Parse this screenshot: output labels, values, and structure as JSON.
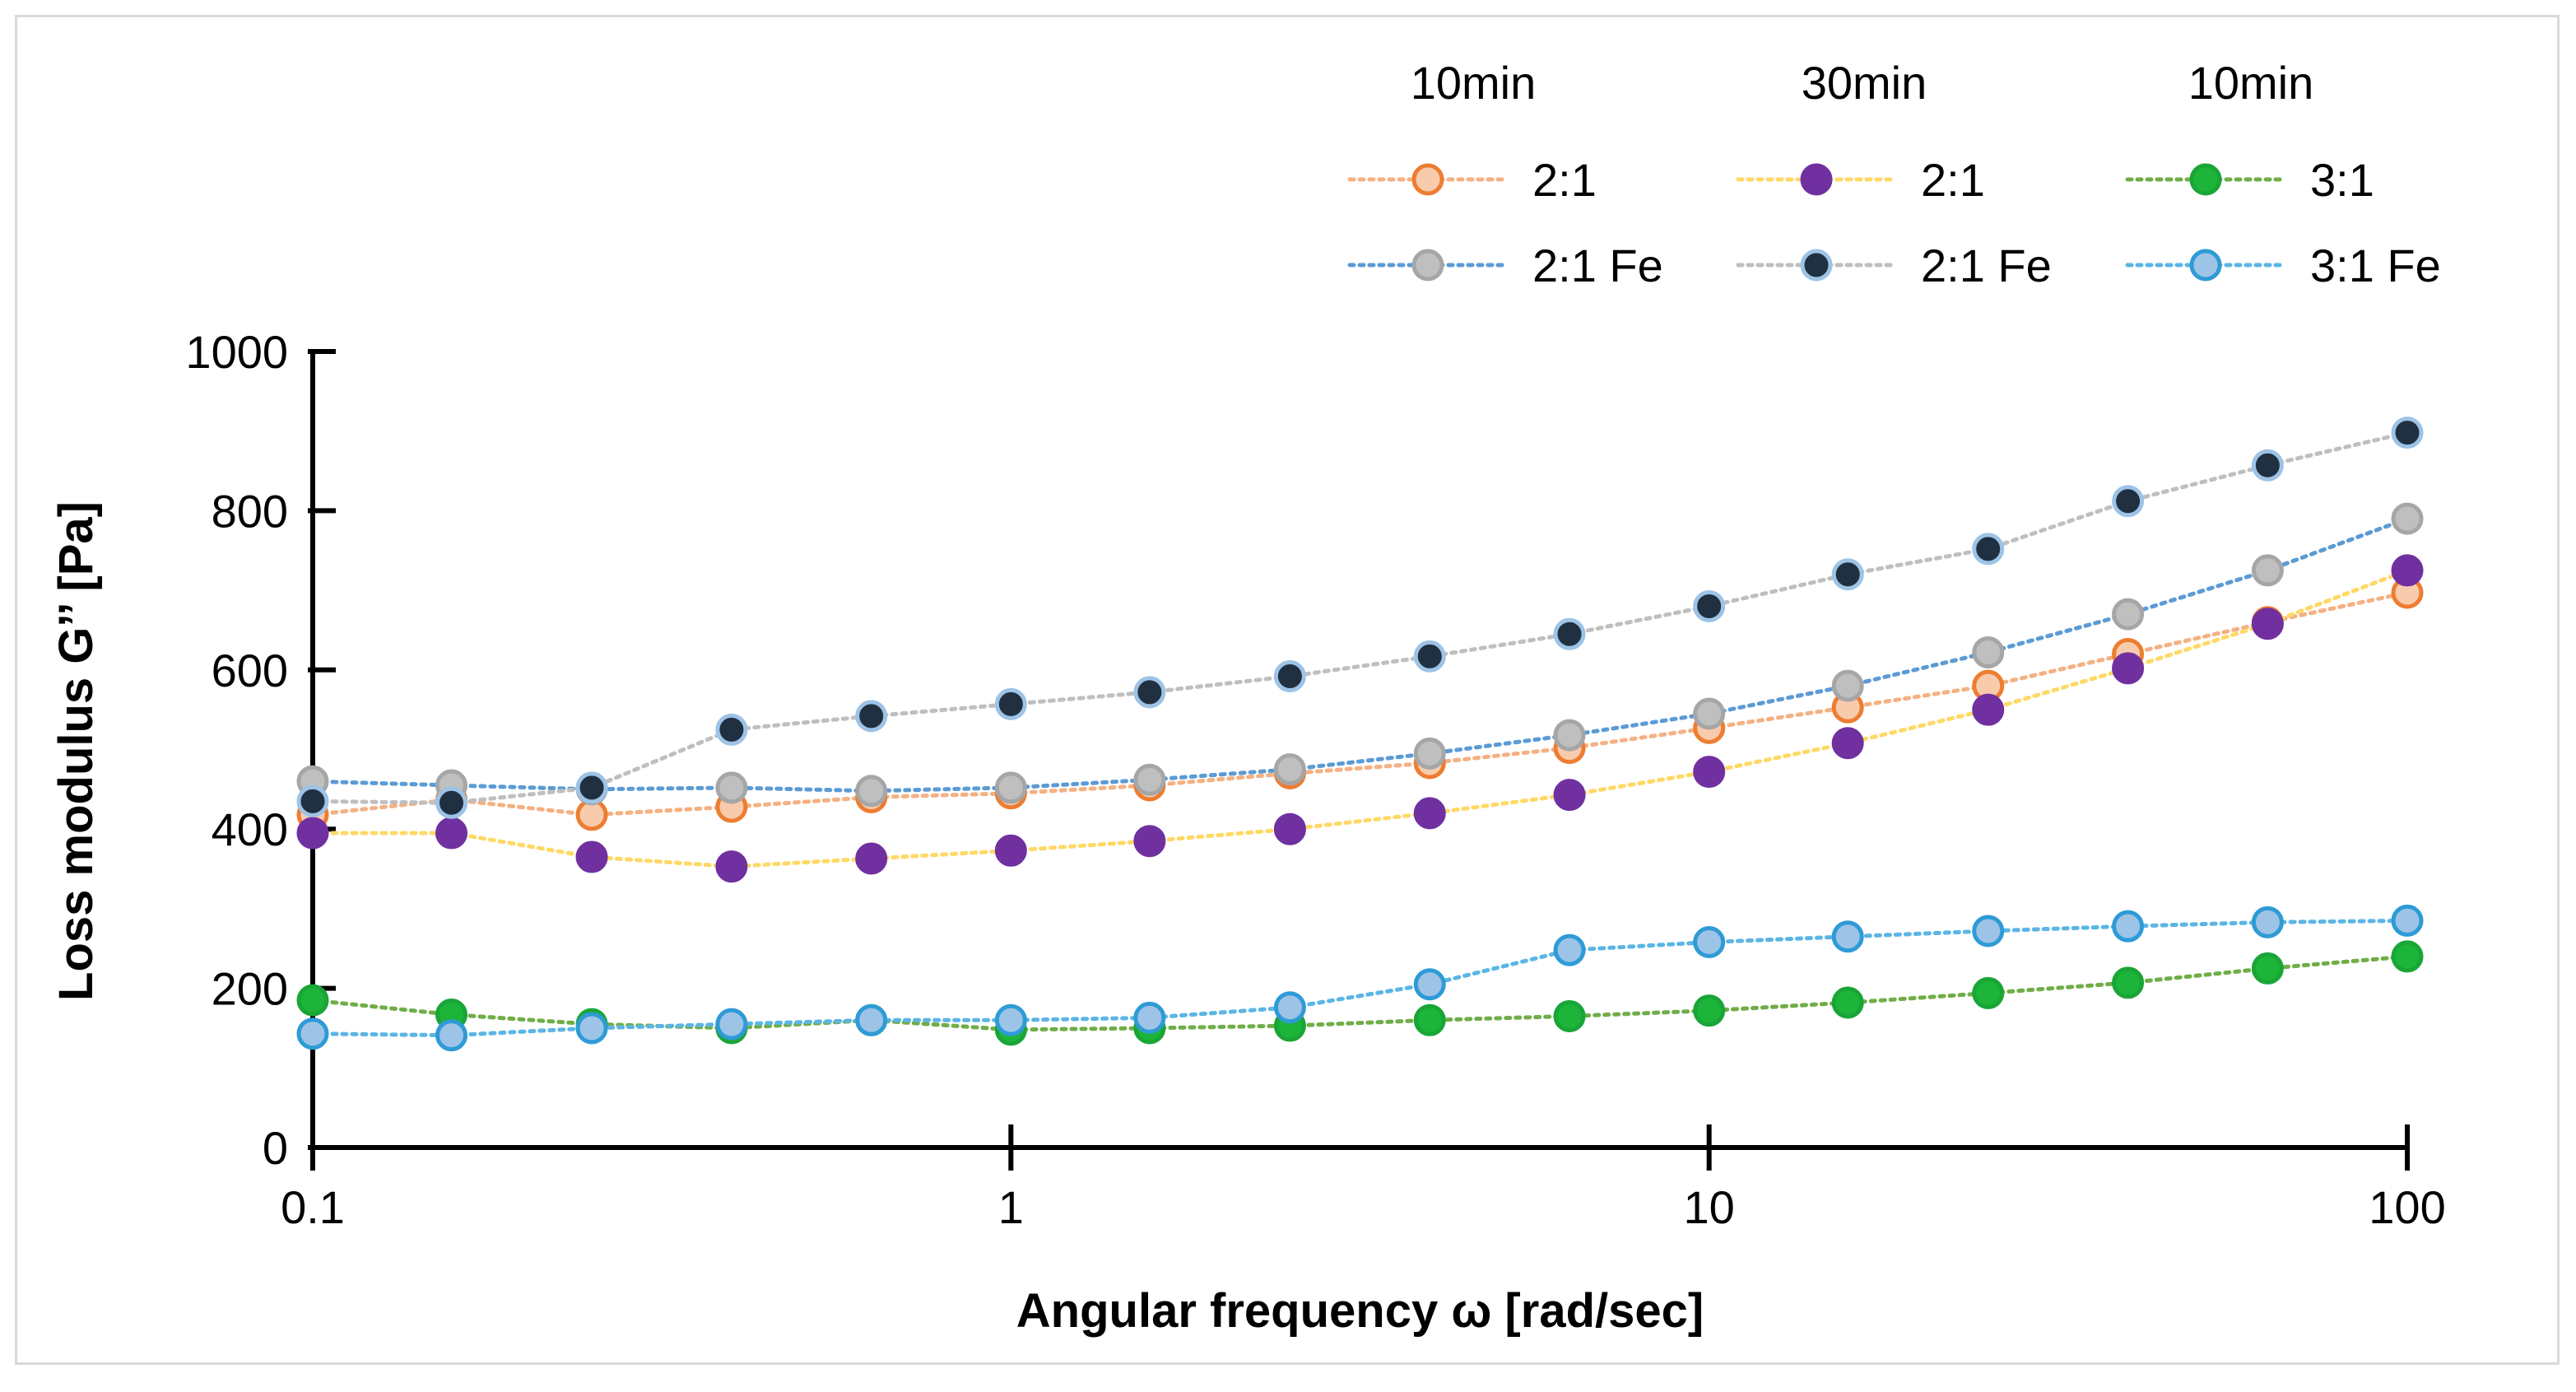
{
  "chart_data": {
    "type": "line",
    "x_scale": "log",
    "xlabel": "Angular frequency ω [rad/sec]",
    "ylabel": "Loss modulus G’’ [Pa]",
    "xlim": [
      0.1,
      100
    ],
    "ylim": [
      0,
      1000
    ],
    "x_ticks": [
      {
        "value": 0.1,
        "label": "0.1"
      },
      {
        "value": 1,
        "label": "1"
      },
      {
        "value": 10,
        "label": "10"
      },
      {
        "value": 100,
        "label": "100"
      }
    ],
    "y_ticks": [
      {
        "value": 0,
        "label": "0"
      },
      {
        "value": 200,
        "label": "200"
      },
      {
        "value": 400,
        "label": "400"
      },
      {
        "value": 600,
        "label": "600"
      },
      {
        "value": 800,
        "label": "800"
      },
      {
        "value": 1000,
        "label": "1000"
      }
    ],
    "legend_placement": "top-right",
    "legend_groups": [
      "10min",
      "30min",
      "10min"
    ],
    "x": [
      0.1,
      0.158,
      0.251,
      0.398,
      0.631,
      1,
      1.58,
      2.51,
      3.98,
      6.31,
      10,
      15.8,
      25.1,
      39.8,
      63.1,
      100
    ],
    "series": [
      {
        "name": "2:1",
        "group": 0,
        "row": 0,
        "line_color": "#f4b183",
        "fill": "#f8cbad",
        "stroke": "#ed7d31",
        "values": [
          418,
          437,
          418,
          428,
          440,
          445,
          455,
          470,
          483,
          502,
          527,
          553,
          580,
          620,
          660,
          697
        ]
      },
      {
        "name": "2:1 Fe",
        "group": 0,
        "row": 1,
        "line_color": "#5b9bd5",
        "fill": "#bfbfbf",
        "stroke": "#a6a6a6",
        "values": [
          460,
          455,
          450,
          452,
          448,
          452,
          462,
          475,
          495,
          518,
          545,
          580,
          622,
          670,
          725,
          790
        ]
      },
      {
        "name": "2:1",
        "group": 1,
        "row": 0,
        "line_color": "#ffd966",
        "fill": "#7030a0",
        "stroke": "#7030a0",
        "values": [
          395,
          395,
          365,
          353,
          363,
          373,
          385,
          400,
          420,
          443,
          472,
          508,
          550,
          602,
          658,
          725
        ]
      },
      {
        "name": "2:1 Fe",
        "group": 1,
        "row": 1,
        "line_color": "#bfbfbf",
        "fill": "#203040",
        "stroke": "#9dc3e6",
        "values": [
          435,
          433,
          452,
          525,
          542,
          557,
          572,
          592,
          617,
          645,
          680,
          720,
          752,
          812,
          857,
          898
        ]
      },
      {
        "name": "3:1",
        "group": 2,
        "row": 0,
        "line_color": "#70ad47",
        "fill": "#1cb53a",
        "stroke": "#1aa537",
        "values": [
          185,
          167,
          155,
          150,
          160,
          148,
          150,
          153,
          160,
          165,
          172,
          182,
          194,
          207,
          225,
          240
        ]
      },
      {
        "name": "3:1 Fe",
        "group": 2,
        "row": 1,
        "line_color": "#5bb5e5",
        "fill": "#9dc3e6",
        "stroke": "#2e9bd6",
        "values": [
          143,
          141,
          150,
          155,
          160,
          160,
          163,
          176,
          205,
          248,
          258,
          265,
          272,
          278,
          283,
          285
        ]
      }
    ]
  }
}
